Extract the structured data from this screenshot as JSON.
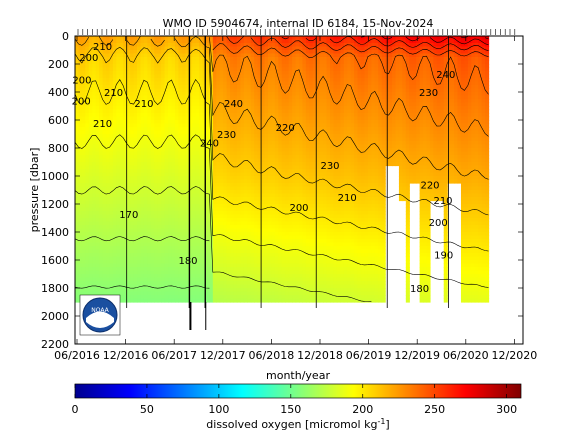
{
  "chart_data": {
    "type": "heatmap",
    "title": "WMO ID 5904674, internal ID 6184, 15-Nov-2024",
    "xlabel": "month/year",
    "ylabel": "pressure [dbar]",
    "x_ticks": [
      "06/2016",
      "12/2016",
      "06/2017",
      "12/2017",
      "06/2018",
      "12/2018",
      "06/2019",
      "12/2019",
      "06/2020",
      "12/2020"
    ],
    "x_range_months_after_2016_05": [
      0,
      108
    ],
    "x_tick_months": [
      1,
      7,
      13,
      19,
      25,
      31,
      37,
      43,
      49,
      55
    ],
    "y_ticks": [
      0,
      200,
      400,
      600,
      800,
      1000,
      1200,
      1400,
      1600,
      1800,
      2000,
      2200
    ],
    "ylim": [
      2200,
      0
    ],
    "data_depth_max": 1900,
    "colorbar": {
      "label": "dissolved oxygen [micromol kg",
      "label_sup": "-1",
      "label_end": "]",
      "range": [
        0,
        310
      ],
      "ticks": [
        0,
        50,
        100,
        150,
        200,
        250,
        300
      ]
    },
    "contour_labels": [
      {
        "text": "200",
        "p": 150
      },
      {
        "text": "210",
        "p": 70
      },
      {
        "text": "200",
        "p": 310
      },
      {
        "text": "200",
        "p": 460
      },
      {
        "text": "210",
        "p": 620
      },
      {
        "text": "210",
        "p": 400
      },
      {
        "text": "210",
        "p": 480
      },
      {
        "text": "170",
        "p": 1270
      },
      {
        "text": "180",
        "p": 1600
      },
      {
        "text": "240",
        "p": 480
      },
      {
        "text": "240",
        "p": 760
      },
      {
        "text": "230",
        "p": 700
      },
      {
        "text": "220",
        "p": 650
      },
      {
        "text": "200",
        "p": 1220
      },
      {
        "text": "210",
        "p": 1150
      },
      {
        "text": "230",
        "p": 920
      },
      {
        "text": "220",
        "p": 1060
      },
      {
        "text": "210",
        "p": 1170
      },
      {
        "text": "200",
        "p": 1330
      },
      {
        "text": "190",
        "p": 1560
      },
      {
        "text": "180",
        "p": 1800
      },
      {
        "text": "230",
        "p": 400
      },
      {
        "text": "240",
        "p": 270
      }
    ]
  },
  "logo": {
    "text": "NOAA"
  }
}
